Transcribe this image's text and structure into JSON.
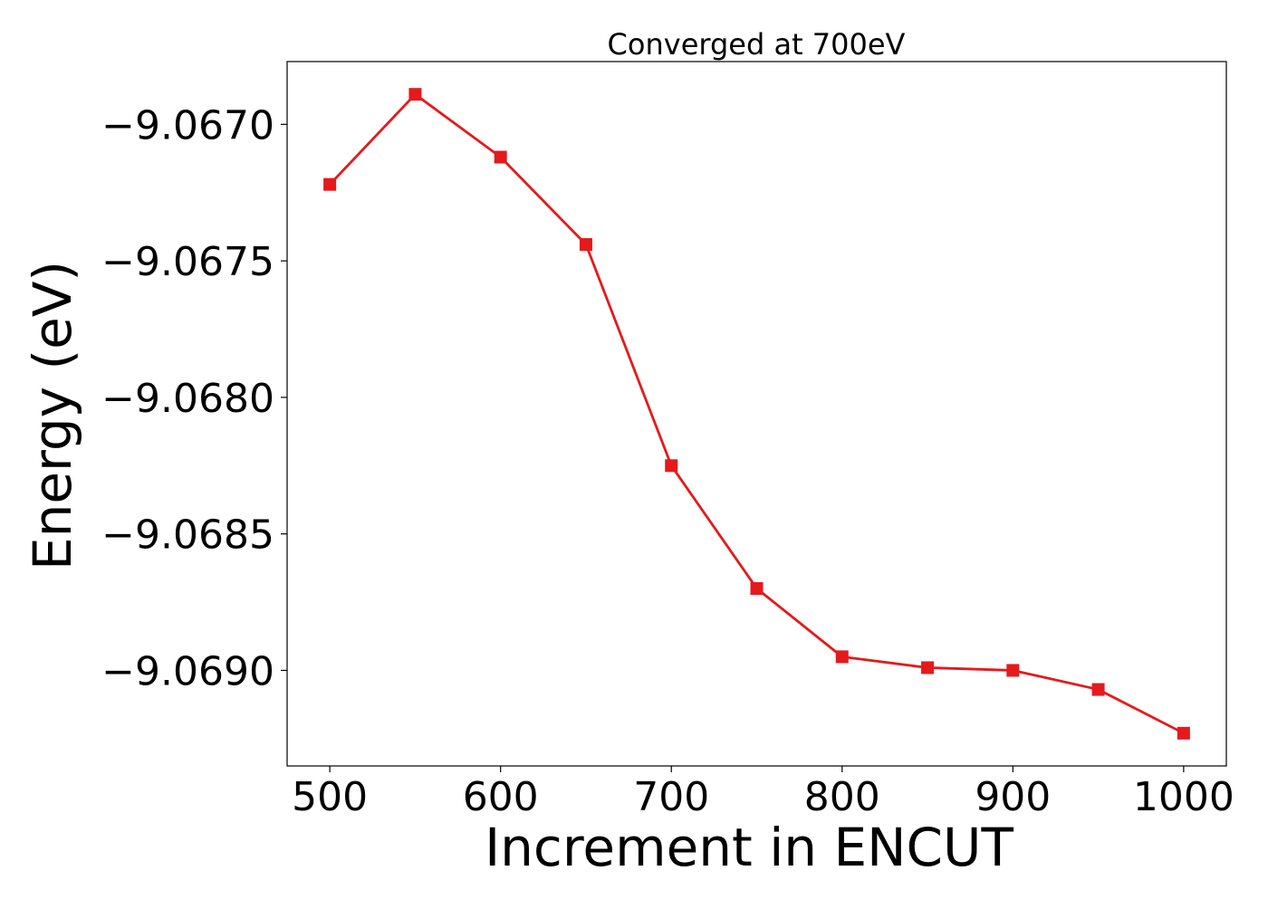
{
  "chart_data": {
    "type": "line",
    "title": "Converged at 700eV",
    "xlabel": "Increment in ENCUT",
    "ylabel": "Energy (eV)",
    "x": [
      500,
      550,
      600,
      650,
      700,
      750,
      800,
      850,
      900,
      950,
      1000
    ],
    "series": [
      {
        "values": [
          -9.06722,
          -9.06689,
          -9.06712,
          -9.06744,
          -9.06825,
          -9.0687,
          -9.06895,
          -9.06899,
          -9.069,
          -9.06907,
          -9.06923
        ],
        "color": "#e41a1c",
        "marker": "square"
      }
    ],
    "xlim": [
      475,
      1025
    ],
    "ylim": [
      -9.06935,
      -9.06677
    ],
    "xticks": [
      500,
      600,
      700,
      800,
      900,
      1000
    ],
    "xtick_labels": [
      "500",
      "600",
      "700",
      "800",
      "900",
      "1000"
    ],
    "yticks": [
      -9.067,
      -9.0675,
      -9.068,
      -9.0685,
      -9.069
    ],
    "ytick_labels": [
      "−9.0670",
      "−9.0675",
      "−9.0680",
      "−9.0685",
      "−9.0690"
    ],
    "grid": false,
    "legend": "none"
  }
}
